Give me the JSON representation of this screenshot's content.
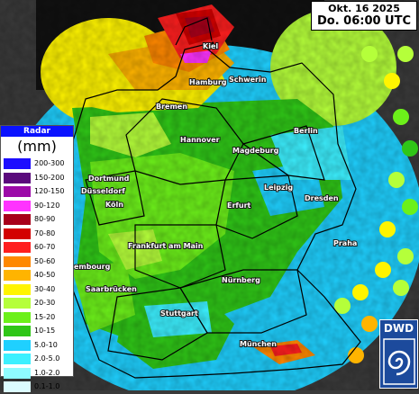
{
  "header": {
    "date": "Okt. 16 2025",
    "time": "Do. 06:00 UTC"
  },
  "legend": {
    "title": "Radar",
    "unit": "(mm)",
    "classes": [
      {
        "label": "200-300",
        "color": "#1d0dff"
      },
      {
        "label": "150-200",
        "color": "#5a0a7c"
      },
      {
        "label": "120-150",
        "color": "#9c0aa8"
      },
      {
        "label": "90-120",
        "color": "#ff33ff"
      },
      {
        "label": "80-90",
        "color": "#a8001a"
      },
      {
        "label": "70-80",
        "color": "#d30000"
      },
      {
        "label": "60-70",
        "color": "#ff1f1f"
      },
      {
        "label": "50-60",
        "color": "#ff8800"
      },
      {
        "label": "40-50",
        "color": "#ffb400"
      },
      {
        "label": "30-40",
        "color": "#fff400"
      },
      {
        "label": "20-30",
        "color": "#b5ff3a"
      },
      {
        "label": "15-20",
        "color": "#6cf01a"
      },
      {
        "label": "10-15",
        "color": "#2fc617"
      },
      {
        "label": "5.0-10",
        "color": "#1fd0ff"
      },
      {
        "label": "2.0-5.0",
        "color": "#3cf0ff"
      },
      {
        "label": "1.0-2.0",
        "color": "#8ffcff"
      },
      {
        "label": "0.1-1.0",
        "color": "#dcfcff"
      }
    ]
  },
  "cities": {
    "kiel": "Kiel",
    "hamburg": "Hamburg",
    "schwerin": "Schwerin",
    "bremen": "Bremen",
    "berlin": "Berlin",
    "hannover": "Hannover",
    "magdeburg": "Magdeburg",
    "dortmund": "Dortmund",
    "duesseldorf": "Düsseldorf",
    "leipzig": "Leipzig",
    "dresden": "Dresden",
    "koeln": "Köln",
    "erfurt": "Erfurt",
    "frankfurt": "Frankfurt am Main",
    "praha": "Praha",
    "luxemburg": "embourg",
    "saarbruecken": "Saarbrücken",
    "nuernberg": "Nürnberg",
    "stuttgart": "Stuttgart",
    "muenchen": "München"
  },
  "logo": {
    "text": "DWD"
  },
  "colors": {
    "background": "#3a3a3a",
    "water": "#000000",
    "border_line": "#000000"
  }
}
